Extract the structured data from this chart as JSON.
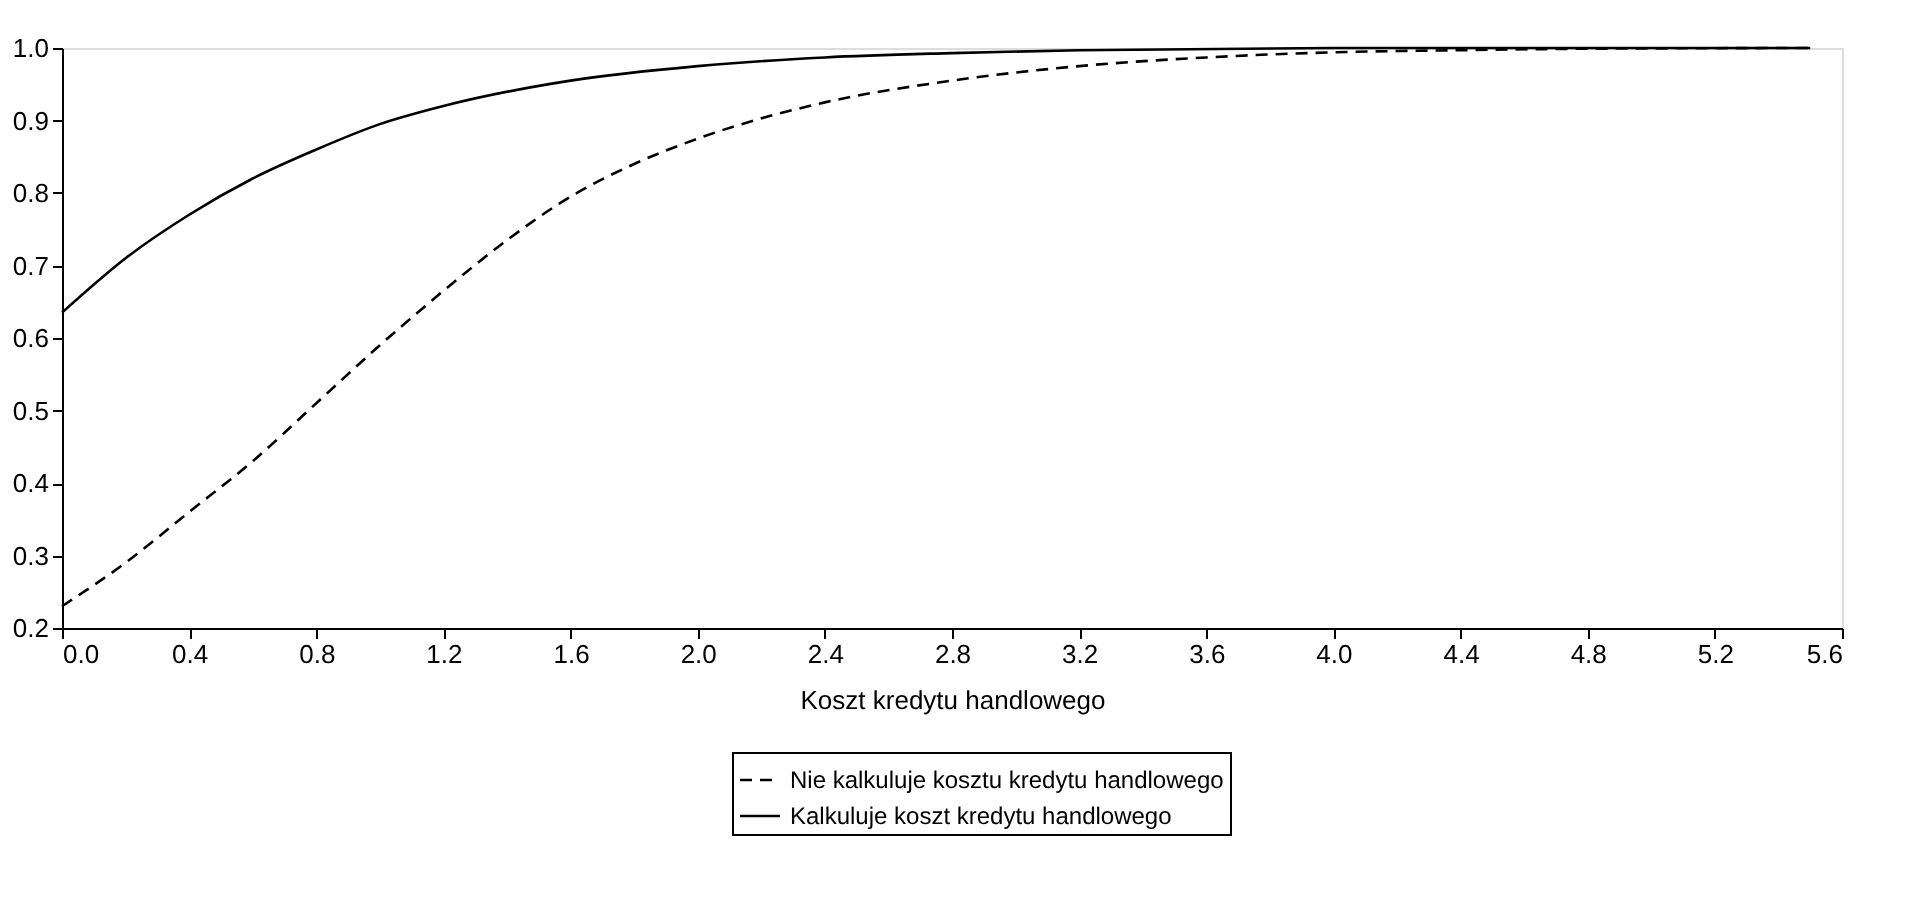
{
  "chart_data": {
    "type": "line",
    "xlabel": "Koszt kredytu handlowego",
    "xlim": [
      0,
      5.6
    ],
    "ylim": [
      0.2,
      1.0
    ],
    "xticks": [
      {
        "value": 0,
        "label": "0.0"
      },
      0.4,
      0.8,
      1.2,
      1.6,
      {
        "value": 2,
        "label": "2.0"
      },
      2.4,
      2.8,
      3.2,
      3.6,
      {
        "value": 4,
        "label": "4.0"
      },
      4.4,
      4.8,
      5.2,
      5.6
    ],
    "yticks": [
      0.2,
      0.3,
      0.4,
      0.5,
      0.6,
      0.7,
      0.8,
      0.9,
      {
        "value": 1,
        "label": "1.0"
      }
    ],
    "grid": false,
    "legend": "bottom",
    "marker": "none",
    "series": [
      {
        "name": "Nie kalkuluje kosztu kredytu handlowego",
        "color": "#000000",
        "line_style": "dashed",
        "x": [
          0,
          0.2,
          0.4,
          0.6,
          0.8,
          1.0,
          1.2,
          1.4,
          1.6,
          1.8,
          2.0,
          2.4,
          2.8,
          3.2,
          3.6,
          4.0,
          4.4,
          4.8,
          5.5
        ],
        "values": [
          0.23,
          0.29,
          0.36,
          0.43,
          0.51,
          0.59,
          0.665,
          0.735,
          0.795,
          0.84,
          0.875,
          0.925,
          0.955,
          0.975,
          0.987,
          0.994,
          0.997,
          0.999,
          1.0
        ]
      },
      {
        "name": "Kalkuluje koszt kredytu handlowego",
        "color": "#000000",
        "line_style": "solid",
        "x": [
          0,
          0.2,
          0.4,
          0.6,
          0.8,
          1.0,
          1.2,
          1.6,
          2.0,
          2.4,
          2.8,
          3.2,
          4.0,
          5.5
        ],
        "values": [
          0.635,
          0.71,
          0.77,
          0.82,
          0.86,
          0.895,
          0.92,
          0.955,
          0.975,
          0.987,
          0.993,
          0.997,
          1.0,
          1.0
        ]
      }
    ]
  }
}
